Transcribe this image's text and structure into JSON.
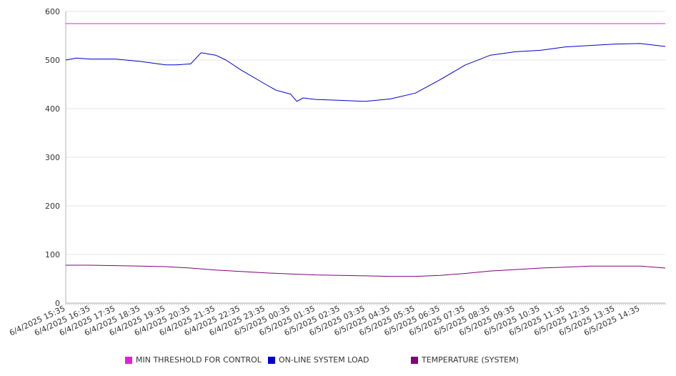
{
  "chart_data": {
    "type": "line",
    "title": "",
    "xlabel": "",
    "ylabel": "",
    "ylim": [
      0,
      600
    ],
    "yticks": [
      0,
      100,
      200,
      300,
      400,
      500,
      600
    ],
    "grid": "horizontal",
    "legend_position": "bottom",
    "x_tick_labels": [
      "6/4/2025 15:35",
      "6/4/2025 16:35",
      "6/4/2025 17:35",
      "6/4/2025 18:35",
      "6/4/2025 19:35",
      "6/4/2025 20:35",
      "6/4/2025 21:35",
      "6/4/2025 22:35",
      "6/4/2025 23:35",
      "6/5/2025 00:35",
      "6/5/2025 01:35",
      "6/5/2025 02:35",
      "6/5/2025 03:35",
      "6/5/2025 04:35",
      "6/5/2025 05:35",
      "6/5/2025 06:35",
      "6/5/2025 07:35",
      "6/5/2025 08:35",
      "6/5/2025 09:35",
      "6/5/2025 10:35",
      "6/5/2025 11:35",
      "6/5/2025 12:35",
      "6/5/2025 13:35",
      "6/5/2025 14:35"
    ],
    "x_range": [
      "6/4/2025 15:35",
      "6/5/2025 15:35"
    ],
    "series": [
      {
        "name": "MIN THRESHOLD FOR CONTROL",
        "color": "#e020e0",
        "points": [
          [
            "6/4/2025 15:35",
            575
          ],
          [
            "6/5/2025 15:35",
            575
          ]
        ]
      },
      {
        "name": "ON-LINE SYSTEM LOAD",
        "color": "#0000cc",
        "points": [
          [
            "6/4/2025 15:35",
            500
          ],
          [
            "6/4/2025 16:00",
            504
          ],
          [
            "6/4/2025 16:35",
            502
          ],
          [
            "6/4/2025 17:35",
            502
          ],
          [
            "6/4/2025 18:35",
            497
          ],
          [
            "6/4/2025 19:35",
            490
          ],
          [
            "6/4/2025 20:00",
            490
          ],
          [
            "6/4/2025 20:35",
            492
          ],
          [
            "6/4/2025 21:00",
            515
          ],
          [
            "6/4/2025 21:35",
            510
          ],
          [
            "6/4/2025 22:00",
            500
          ],
          [
            "6/4/2025 22:35",
            480
          ],
          [
            "6/4/2025 23:35",
            450
          ],
          [
            "6/5/2025 00:00",
            438
          ],
          [
            "6/5/2025 00:35",
            430
          ],
          [
            "6/5/2025 00:50",
            415
          ],
          [
            "6/5/2025 01:05",
            422
          ],
          [
            "6/5/2025 01:35",
            419
          ],
          [
            "6/5/2025 02:35",
            417
          ],
          [
            "6/5/2025 03:35",
            415
          ],
          [
            "6/5/2025 04:35",
            420
          ],
          [
            "6/5/2025 05:35",
            432
          ],
          [
            "6/5/2025 06:35",
            460
          ],
          [
            "6/5/2025 07:35",
            490
          ],
          [
            "6/5/2025 08:35",
            510
          ],
          [
            "6/5/2025 09:35",
            517
          ],
          [
            "6/5/2025 10:35",
            520
          ],
          [
            "6/5/2025 11:35",
            527
          ],
          [
            "6/5/2025 12:35",
            530
          ],
          [
            "6/5/2025 13:35",
            533
          ],
          [
            "6/5/2025 14:35",
            534
          ],
          [
            "6/5/2025 15:35",
            528
          ]
        ]
      },
      {
        "name": "TEMPERATURE (SYSTEM)",
        "color": "#800080",
        "points": [
          [
            "6/4/2025 15:35",
            78
          ],
          [
            "6/4/2025 16:35",
            78
          ],
          [
            "6/4/2025 17:35",
            77
          ],
          [
            "6/4/2025 18:35",
            76
          ],
          [
            "6/4/2025 19:35",
            75
          ],
          [
            "6/4/2025 20:35",
            72
          ],
          [
            "6/4/2025 21:35",
            68
          ],
          [
            "6/4/2025 22:35",
            65
          ],
          [
            "6/4/2025 23:35",
            62
          ],
          [
            "6/5/2025 00:35",
            60
          ],
          [
            "6/5/2025 01:35",
            58
          ],
          [
            "6/5/2025 02:35",
            57
          ],
          [
            "6/5/2025 03:35",
            56
          ],
          [
            "6/5/2025 04:35",
            55
          ],
          [
            "6/5/2025 05:35",
            55
          ],
          [
            "6/5/2025 06:35",
            57
          ],
          [
            "6/5/2025 07:35",
            61
          ],
          [
            "6/5/2025 08:35",
            66
          ],
          [
            "6/5/2025 09:35",
            69
          ],
          [
            "6/5/2025 10:35",
            72
          ],
          [
            "6/5/2025 11:35",
            74
          ],
          [
            "6/5/2025 12:35",
            76
          ],
          [
            "6/5/2025 13:35",
            76
          ],
          [
            "6/5/2025 14:35",
            76
          ],
          [
            "6/5/2025 15:35",
            72
          ]
        ]
      }
    ]
  }
}
